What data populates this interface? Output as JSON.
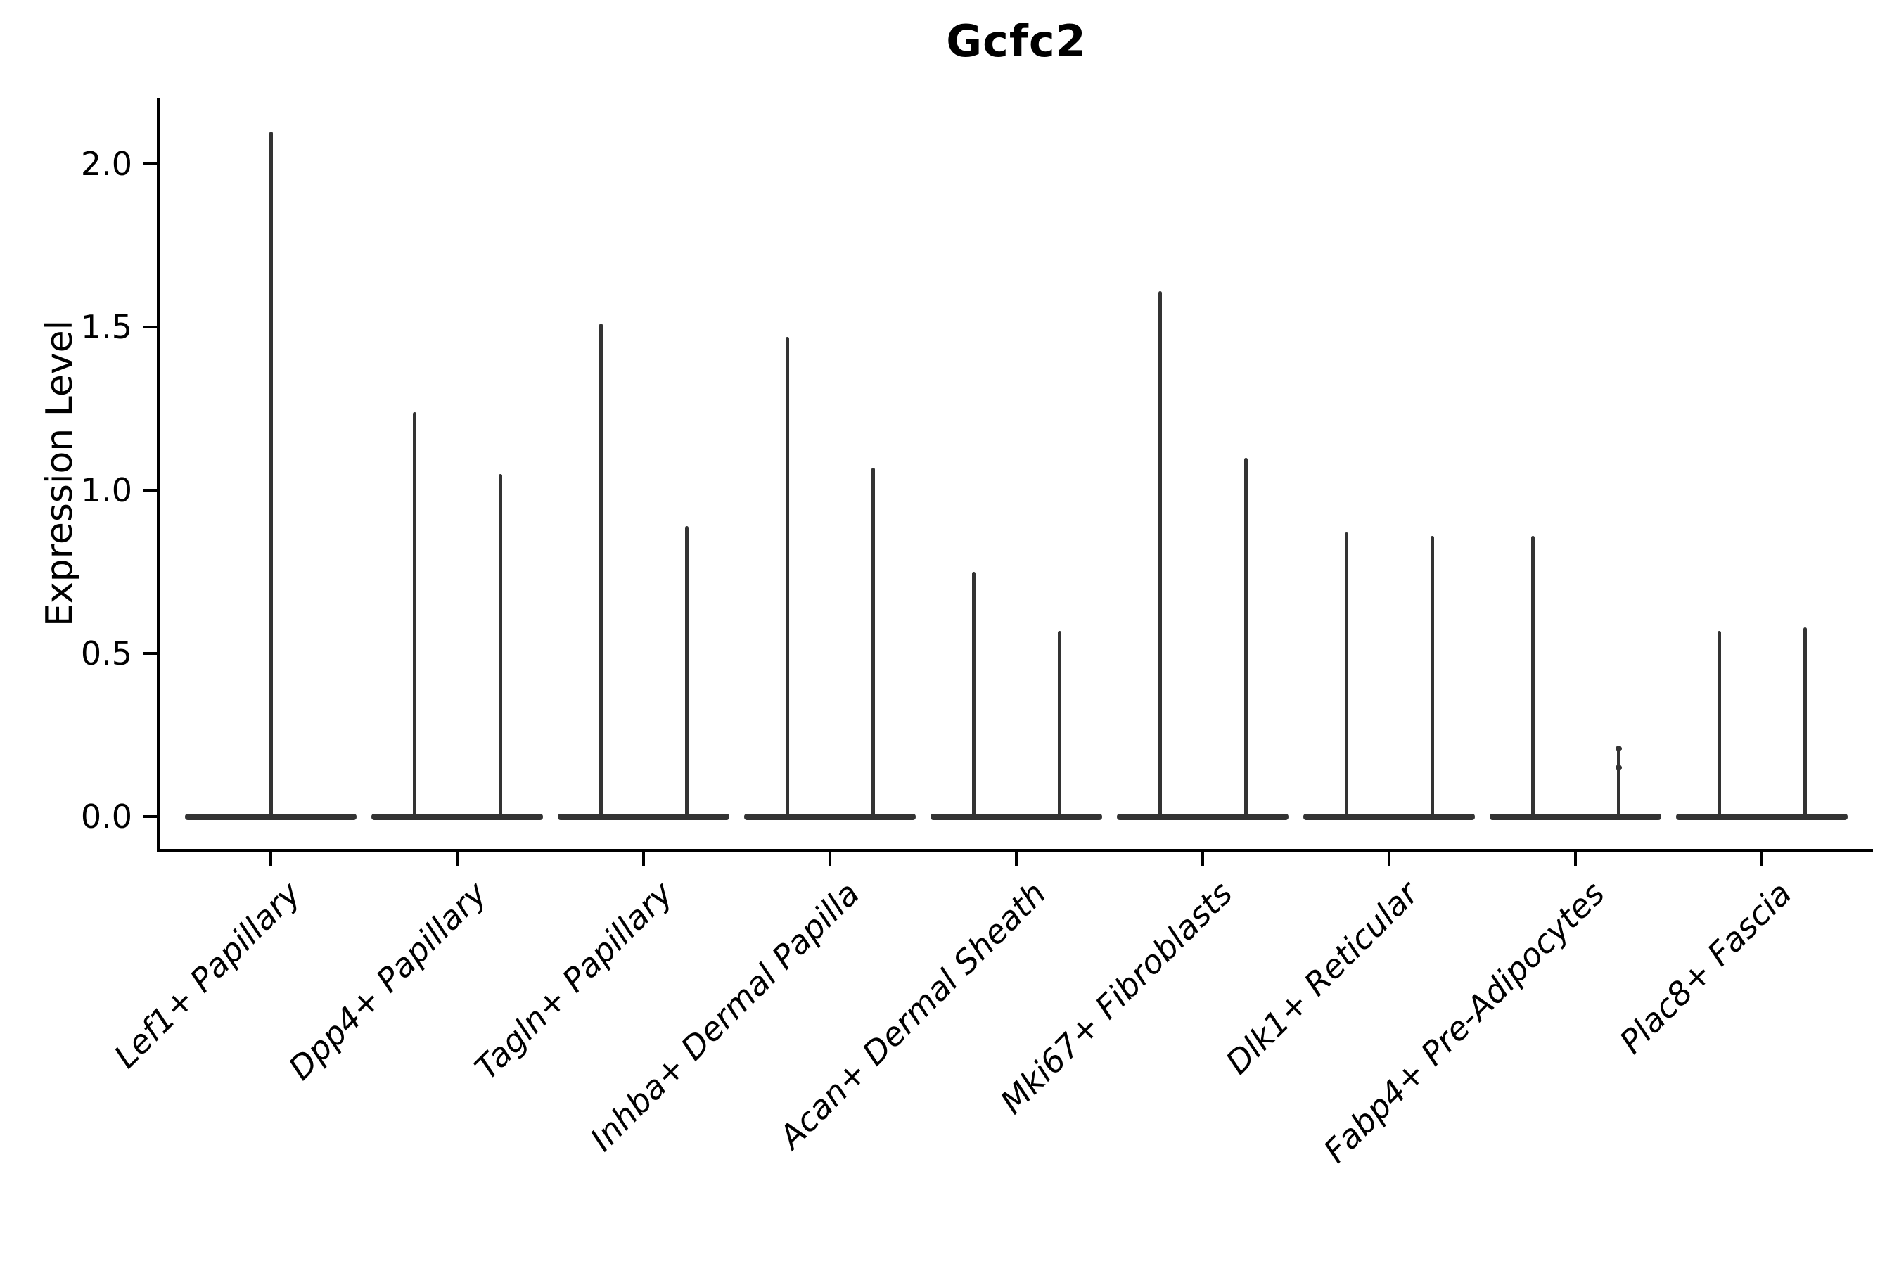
{
  "figure": {
    "title": "Gcfc2",
    "ylabel": "Expression Level"
  },
  "colors": {
    "background": "#ffffff",
    "violin": "#333333",
    "axis": "#000000",
    "text": "#000000"
  },
  "chart_data": {
    "type": "violin",
    "title": "Gcfc2",
    "xlabel": "",
    "ylabel": "Expression Level",
    "ylim": [
      -0.1,
      2.2
    ],
    "yticks": [
      0.0,
      0.5,
      1.0,
      1.5,
      2.0
    ],
    "ytick_labels": [
      "0.0",
      "0.5",
      "1.0",
      "1.5",
      "2.0"
    ],
    "grid": false,
    "legend": "none",
    "categories": [
      "Lef1+ Papillary",
      "Dpp4+ Papillary",
      "Tagln+ Papillary",
      "Inhba+ Dermal Papilla",
      "Acan+ Dermal Sheath",
      "Mki67+ Fibroblasts",
      "Dlk1+ Reticular",
      "Fabp4+ Pre-Adipocytes",
      "Plac8+ Fascia"
    ],
    "description": "Each category shows 1-2 very thin violins: a flat dark base bar at expression 0 and a narrow vertical spike rising to the maximum expression value.",
    "violins": [
      {
        "category": "Lef1+ Papillary",
        "spike_max_values": [
          2.1
        ]
      },
      {
        "category": "Dpp4+ Papillary",
        "spike_max_values": [
          1.24,
          1.05
        ]
      },
      {
        "category": "Tagln+ Papillary",
        "spike_max_values": [
          1.51,
          0.89
        ]
      },
      {
        "category": "Inhba+ Dermal Papilla",
        "spike_max_values": [
          1.47,
          1.07
        ]
      },
      {
        "category": "Acan+ Dermal Sheath",
        "spike_max_values": [
          0.75,
          0.57
        ]
      },
      {
        "category": "Mki67+ Fibroblasts",
        "spike_max_values": [
          1.61,
          1.1
        ]
      },
      {
        "category": "Dlk1+ Reticular",
        "spike_max_values": [
          0.87,
          0.86
        ]
      },
      {
        "category": "Fabp4+ Pre-Adipocytes",
        "spike_max_values": [
          0.86,
          0.21
        ],
        "dots": [
          {
            "spike": 1,
            "values": [
              0.21,
              0.15
            ]
          }
        ]
      },
      {
        "category": "Plac8+ Fascia",
        "spike_max_values": [
          0.57,
          0.58
        ]
      }
    ]
  }
}
